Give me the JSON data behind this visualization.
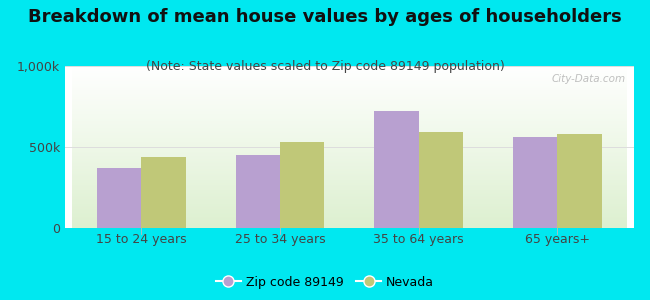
{
  "title": "Breakdown of mean house values by ages of householders",
  "subtitle": "(Note: State values scaled to Zip code 89149 population)",
  "categories": [
    "15 to 24 years",
    "25 to 34 years",
    "35 to 64 years",
    "65 years+"
  ],
  "zip_values": [
    370000,
    450000,
    720000,
    560000
  ],
  "nevada_values": [
    440000,
    530000,
    590000,
    580000
  ],
  "zip_color": "#b8a0d0",
  "nevada_color": "#c0c878",
  "background_color": "#00e8f0",
  "ylim": [
    0,
    1000000
  ],
  "ytick_labels": [
    "0",
    "500k",
    "1,000k"
  ],
  "legend_labels": [
    "Zip code 89149",
    "Nevada"
  ],
  "watermark": "City-Data.com",
  "title_fontsize": 13,
  "subtitle_fontsize": 9,
  "tick_fontsize": 9,
  "legend_fontsize": 9
}
